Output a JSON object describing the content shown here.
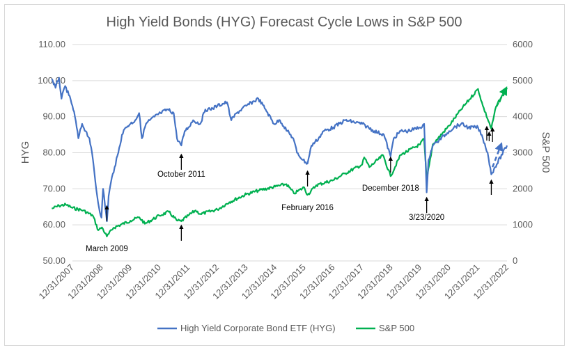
{
  "chart_data": {
    "type": "line",
    "title": "High Yield Bonds (HYG) Forecast Cycle Lows in S&P 500",
    "ylabel": "HYG",
    "y2label": "S&P 500",
    "ylim": [
      50,
      110
    ],
    "y2lim": [
      0,
      6000
    ],
    "yticks": [
      "50.00",
      "60.00",
      "70.00",
      "80.00",
      "90.00",
      "100.00",
      "110.00"
    ],
    "y2ticks": [
      "0",
      "1000",
      "2000",
      "3000",
      "4000",
      "5000",
      "6000"
    ],
    "xticks": [
      "12/31/2007",
      "12/31/2008",
      "12/31/2009",
      "12/31/2010",
      "12/31/2011",
      "12/31/2012",
      "12/31/2013",
      "12/31/2014",
      "12/31/2015",
      "12/31/2016",
      "12/31/2017",
      "12/31/2018",
      "12/31/2019",
      "12/31/2020",
      "12/31/2021",
      "12/31/2022"
    ],
    "grid": "horizontal",
    "legend_position": "bottom",
    "series": [
      {
        "name": "High Yield Corporate Bond ETF (HYG)",
        "axis": "left",
        "color": "#4472c4",
        "x": [
          "2007-04-15",
          "2007-06-01",
          "2007-07-15",
          "2007-08-15",
          "2007-10-01",
          "2007-11-15",
          "2007-12-31",
          "2008-02-01",
          "2008-03-15",
          "2008-05-01",
          "2008-06-15",
          "2008-08-01",
          "2008-09-15",
          "2008-10-15",
          "2008-11-20",
          "2008-12-31",
          "2009-01-20",
          "2009-03-10",
          "2009-04-01",
          "2009-05-01",
          "2009-06-15",
          "2009-08-01",
          "2009-09-15",
          "2009-11-01",
          "2009-12-31",
          "2010-03-01",
          "2010-04-20",
          "2010-05-25",
          "2010-07-15",
          "2010-09-01",
          "2010-11-01",
          "2011-01-15",
          "2011-04-15",
          "2011-06-30",
          "2011-08-10",
          "2011-10-04",
          "2011-11-15",
          "2011-12-31",
          "2012-03-01",
          "2012-05-30",
          "2012-08-01",
          "2012-10-01",
          "2012-12-31",
          "2013-05-01",
          "2013-06-25",
          "2013-09-01",
          "2013-12-31",
          "2014-06-01",
          "2014-09-01",
          "2014-12-15",
          "2015-03-01",
          "2015-06-01",
          "2015-08-15",
          "2015-10-01",
          "2015-12-15",
          "2016-02-11",
          "2016-04-01",
          "2016-06-30",
          "2016-09-01",
          "2016-12-31",
          "2017-06-01",
          "2017-12-31",
          "2018-06-01",
          "2018-10-01",
          "2018-12-24",
          "2019-02-01",
          "2019-05-01",
          "2019-08-01",
          "2019-12-31",
          "2020-02-20",
          "2020-03-23",
          "2020-04-15",
          "2020-06-08",
          "2020-08-01",
          "2020-12-31",
          "2021-03-01",
          "2021-06-01",
          "2021-09-01",
          "2021-12-31",
          "2022-03-01",
          "2022-05-01",
          "2022-06-16",
          "2022-08-01",
          "2022-12-31"
        ],
        "values": [
          100.5,
          98,
          100.8,
          95,
          98.5,
          96,
          93,
          90,
          84,
          88,
          86,
          84,
          78,
          72,
          66,
          62,
          70,
          61,
          68,
          72,
          76,
          80,
          85,
          87,
          88,
          89,
          91,
          84,
          88,
          89,
          90,
          91,
          92,
          91,
          84,
          82,
          86,
          87,
          89,
          88,
          92,
          92,
          93,
          94,
          89,
          91,
          93,
          95,
          92,
          88,
          89,
          86,
          84,
          80,
          78,
          77,
          82,
          84,
          86,
          87,
          89,
          88,
          86,
          85,
          79,
          84,
          86,
          86,
          87,
          88,
          69,
          78,
          82,
          83,
          86,
          87,
          88,
          87,
          87,
          84,
          80,
          74,
          76,
          82
        ]
      },
      {
        "name": "S&P 500",
        "axis": "right",
        "color": "#00b050",
        "x": [
          "2007-04-15",
          "2007-07-15",
          "2007-10-09",
          "2008-01-01",
          "2008-05-15",
          "2008-09-15",
          "2008-11-20",
          "2009-01-06",
          "2009-03-09",
          "2009-06-01",
          "2009-12-31",
          "2010-04-23",
          "2010-07-01",
          "2010-12-31",
          "2011-04-29",
          "2011-08-08",
          "2011-10-03",
          "2011-12-31",
          "2012-04-01",
          "2012-06-01",
          "2012-12-31",
          "2013-06-01",
          "2013-12-31",
          "2014-06-01",
          "2014-12-31",
          "2015-05-20",
          "2015-08-24",
          "2015-12-31",
          "2016-02-11",
          "2016-06-01",
          "2016-12-31",
          "2017-06-01",
          "2017-12-31",
          "2018-01-26",
          "2018-04-01",
          "2018-09-20",
          "2018-12-24",
          "2019-04-30",
          "2019-12-31",
          "2020-02-19",
          "2020-03-23",
          "2020-06-08",
          "2020-12-31",
          "2021-06-01",
          "2021-12-31",
          "2022-03-01",
          "2022-06-16",
          "2022-08-15",
          "2022-12-31"
        ],
        "values": [
          1450,
          1530,
          1560,
          1470,
          1400,
          1250,
          850,
          930,
          680,
          920,
          1115,
          1210,
          1030,
          1258,
          1360,
          1120,
          1100,
          1258,
          1400,
          1300,
          1426,
          1630,
          1850,
          1950,
          2060,
          2130,
          1870,
          2040,
          1830,
          2100,
          2240,
          2430,
          2670,
          2870,
          2600,
          2930,
          2350,
          2940,
          3230,
          3390,
          2240,
          3230,
          3750,
          4200,
          4770,
          4300,
          3670,
          4280,
          4800
        ]
      }
    ],
    "annotations": [
      "March 2009",
      "October 2011",
      "February 2016",
      "December 2018",
      "3/23/2020"
    ]
  }
}
